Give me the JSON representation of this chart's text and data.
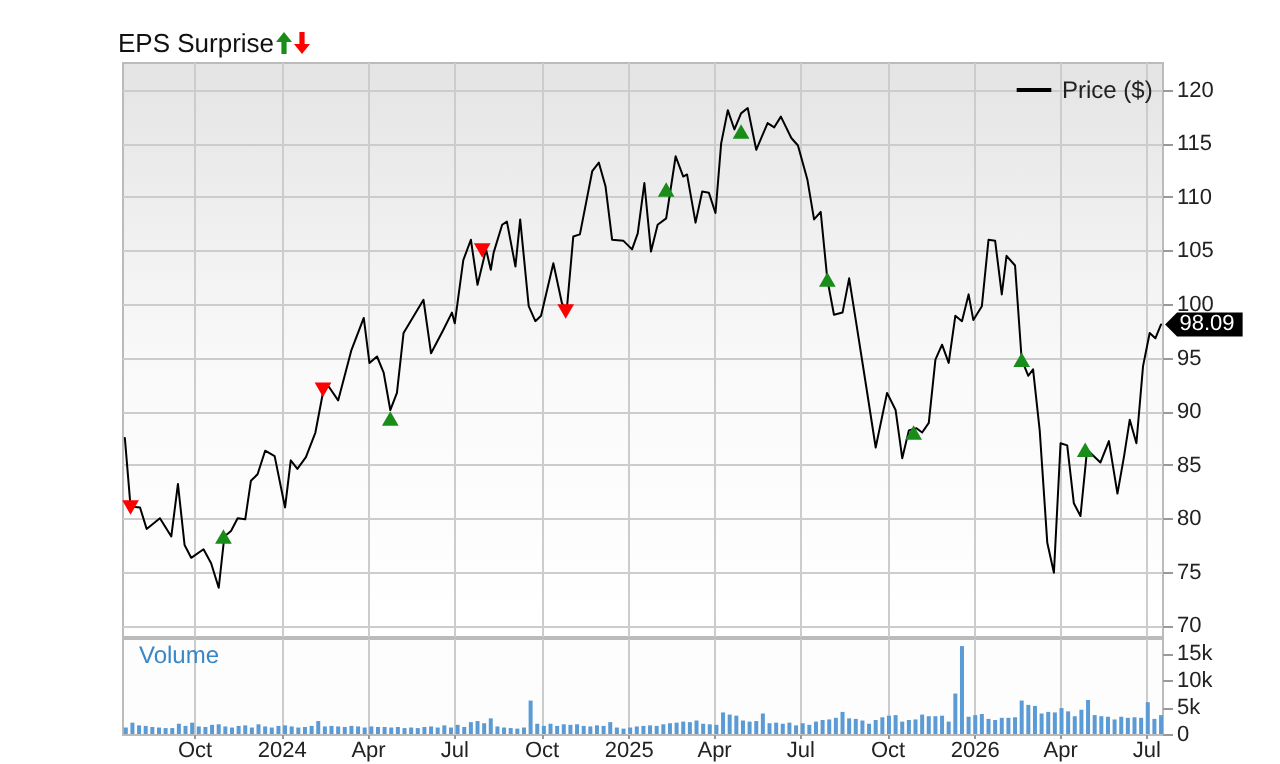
{
  "chart_data": [
    {
      "type": "line",
      "title": "EPS Surprise",
      "xlim": [
        "2023-07-17",
        "2026-07-18"
      ],
      "xticks": [
        {
          "value": "2023-10-01",
          "label": null
        },
        {
          "value": "2024-01-01",
          "label": null
        },
        {
          "value": "2024-04-01",
          "label": null
        },
        {
          "value": "2024-07-01",
          "label": null
        },
        {
          "value": "2024-10-01",
          "label": null
        },
        {
          "value": "2025-01-01",
          "label": null
        },
        {
          "value": "2025-04-01",
          "label": null
        },
        {
          "value": "2025-07-01",
          "label": null
        },
        {
          "value": "2025-10-01",
          "label": null
        },
        {
          "value": "2026-01-01",
          "label": null
        },
        {
          "value": "2026-04-01",
          "label": null
        },
        {
          "value": "2026-07-01",
          "label": null
        }
      ],
      "ylim": [
        69,
        122.6
      ],
      "yticks": [
        70,
        75,
        80,
        85,
        90,
        95,
        100,
        105,
        110,
        115,
        120
      ],
      "tick_labels": "y",
      "grid": true,
      "legend": "top right",
      "series": [
        {
          "name": "Price ($)",
          "color": "#000000",
          "x": [
            "2023-07-20",
            "2023-07-26",
            "2023-08-05",
            "2023-08-12",
            "2023-08-26",
            "2023-09-07",
            "2023-09-14",
            "2023-09-21",
            "2023-09-28",
            "2023-10-11",
            "2023-10-19",
            "2023-10-27",
            "2023-11-02",
            "2023-11-09",
            "2023-11-16",
            "2023-11-24",
            "2023-11-30",
            "2023-12-07",
            "2023-12-15",
            "2023-12-25",
            "2024-01-05",
            "2024-01-11",
            "2024-01-18",
            "2024-01-27",
            "2024-02-06",
            "2024-02-15",
            "2024-02-20",
            "2024-03-01",
            "2024-03-15",
            "2024-03-28",
            "2024-04-03",
            "2024-04-11",
            "2024-04-18",
            "2024-04-25",
            "2024-05-02",
            "2024-05-09",
            "2024-05-30",
            "2024-06-07",
            "2024-06-20",
            "2024-06-29",
            "2024-07-02",
            "2024-07-11",
            "2024-07-19",
            "2024-07-26",
            "2024-08-04",
            "2024-08-09",
            "2024-08-12",
            "2024-08-21",
            "2024-08-26",
            "2024-09-04",
            "2024-09-09",
            "2024-09-18",
            "2024-09-25",
            "2024-10-01",
            "2024-10-14",
            "2024-10-23",
            "2024-10-28",
            "2024-11-04",
            "2024-11-11",
            "2024-11-24",
            "2024-12-01",
            "2024-12-08",
            "2024-12-15",
            "2024-12-27",
            "2025-01-05",
            "2025-01-11",
            "2025-01-18",
            "2025-01-25",
            "2025-02-01",
            "2025-02-10",
            "2025-02-20",
            "2025-02-28",
            "2025-03-04",
            "2025-03-13",
            "2025-03-20",
            "2025-03-27",
            "2025-04-03",
            "2025-04-09",
            "2025-04-16",
            "2025-04-23",
            "2025-04-30",
            "2025-05-07",
            "2025-05-16",
            "2025-05-28",
            "2025-06-04",
            "2025-06-11",
            "2025-06-22",
            "2025-06-29",
            "2025-07-09",
            "2025-07-16",
            "2025-07-23",
            "2025-07-30",
            "2025-08-06",
            "2025-08-15",
            "2025-08-22",
            "2025-08-29",
            "2025-09-09",
            "2025-09-19",
            "2025-10-01",
            "2025-10-10",
            "2025-10-17",
            "2025-10-24",
            "2025-11-01",
            "2025-11-07",
            "2025-11-14",
            "2025-11-21",
            "2025-11-28",
            "2025-12-05",
            "2025-12-12",
            "2025-12-19",
            "2025-12-26",
            "2025-12-31",
            "2026-01-09",
            "2026-01-16",
            "2026-01-23",
            "2026-01-30",
            "2026-02-04",
            "2026-02-13",
            "2026-02-20",
            "2026-02-27",
            "2026-03-04",
            "2026-03-11",
            "2026-03-19",
            "2026-03-26",
            "2026-04-02",
            "2026-04-09",
            "2026-04-16",
            "2026-04-23",
            "2026-04-30",
            "2026-05-14",
            "2026-05-23",
            "2026-06-01",
            "2026-06-08",
            "2026-06-14",
            "2026-06-21",
            "2026-06-28",
            "2026-07-05",
            "2026-07-11",
            "2026-07-17"
          ],
          "values": [
            87.5,
            81.1,
            81.0,
            79.0,
            80.0,
            78.3,
            83.2,
            77.5,
            76.3,
            77.1,
            75.8,
            73.5,
            78.3,
            78.8,
            80.0,
            79.9,
            83.5,
            84.1,
            86.3,
            85.8,
            81.0,
            85.4,
            84.6,
            85.7,
            88.0,
            92.2,
            92.3,
            91.0,
            95.7,
            98.7,
            94.5,
            95.1,
            93.6,
            90.1,
            91.7,
            97.3,
            100.4,
            95.4,
            97.6,
            99.2,
            98.2,
            104.1,
            106.0,
            101.8,
            105.1,
            103.2,
            104.8,
            107.4,
            107.7,
            103.5,
            107.9,
            99.8,
            98.4,
            98.9,
            103.8,
            100.1,
            99.3,
            106.3,
            106.5,
            112.4,
            113.2,
            111.0,
            106.0,
            105.9,
            105.1,
            106.6,
            111.3,
            104.9,
            107.4,
            108.0,
            113.8,
            111.9,
            112.1,
            107.6,
            110.5,
            110.4,
            108.5,
            115.0,
            118.1,
            116.3,
            117.8,
            118.3,
            114.4,
            116.9,
            116.5,
            117.5,
            115.5,
            114.8,
            111.6,
            107.9,
            108.6,
            102.3,
            99.0,
            99.2,
            102.4,
            98.5,
            92.3,
            86.6,
            91.7,
            90.1,
            85.6,
            88.2,
            88.4,
            88.0,
            88.9,
            94.8,
            96.2,
            94.5,
            98.9,
            98.4,
            100.9,
            98.5,
            99.8,
            106.0,
            105.9,
            100.9,
            104.5,
            103.6,
            94.8,
            93.3,
            93.9,
            88.2,
            77.7,
            74.9,
            87.0,
            86.8,
            81.4,
            80.2,
            86.4,
            85.2,
            87.2,
            82.3,
            85.8,
            89.2,
            87.0,
            94.2,
            97.3,
            96.8,
            98.09
          ]
        },
        {
          "type": "scatter",
          "color": "#1a8c1a",
          "marker": "triangle",
          "x": [
            "2023-11-01",
            "2024-04-25",
            "2025-02-10",
            "2025-04-30",
            "2025-07-30",
            "2025-10-29",
            "2026-02-20",
            "2026-04-28"
          ],
          "values": [
            78.3,
            89.3,
            110.7,
            116.1,
            102.3,
            88.0,
            94.8,
            86.4
          ]
        },
        {
          "type": "scatter",
          "color": "#ff0000",
          "marker": "triangle",
          "x": [
            "2023-07-26",
            "2024-02-14",
            "2024-07-31",
            "2024-10-27"
          ],
          "values": [
            81.0,
            92.0,
            105.0,
            99.3
          ]
        }
      ],
      "annotations": [
        {
          "text": "98.09",
          "x": "2026-07-17",
          "y": 98.09
        }
      ]
    },
    {
      "type": "bar",
      "ylabel": "Volume",
      "xlim": [
        "2023-07-17",
        "2026-07-18"
      ],
      "xticks": [
        {
          "value": "2023-10-01",
          "label": "Oct"
        },
        {
          "value": "2024-01-01",
          "label": "2024"
        },
        {
          "value": "2024-04-01",
          "label": "Apr"
        },
        {
          "value": "2024-07-01",
          "label": "Jul"
        },
        {
          "value": "2024-10-01",
          "label": "Oct"
        },
        {
          "value": "2025-01-01",
          "label": "2025"
        },
        {
          "value": "2025-04-01",
          "label": "Apr"
        },
        {
          "value": "2025-07-01",
          "label": "Jul"
        },
        {
          "value": "2025-10-01",
          "label": "Oct"
        },
        {
          "value": "2026-01-01",
          "label": "2026"
        },
        {
          "value": "2026-04-01",
          "label": "Apr"
        },
        {
          "value": "2026-07-01",
          "label": "Jul"
        }
      ],
      "ylim": [
        0,
        17800
      ],
      "yticks": [
        0,
        {
          "value": 5000,
          "label": "5k"
        },
        {
          "value": 10000,
          "label": "10k"
        },
        {
          "value": 15000,
          "label": "15k"
        }
      ],
      "grid": "x",
      "x": [
        "2023-07-21",
        "2023-07-28",
        "2023-08-04",
        "2023-08-11",
        "2023-08-18",
        "2023-08-25",
        "2023-09-01",
        "2023-09-08",
        "2023-09-15",
        "2023-09-22",
        "2023-09-29",
        "2023-10-06",
        "2023-10-13",
        "2023-10-20",
        "2023-10-27",
        "2023-11-03",
        "2023-11-10",
        "2023-11-17",
        "2023-11-24",
        "2023-12-01",
        "2023-12-08",
        "2023-12-15",
        "2023-12-22",
        "2023-12-29",
        "2024-01-05",
        "2024-01-12",
        "2024-01-19",
        "2024-01-26",
        "2024-02-02",
        "2024-02-09",
        "2024-02-16",
        "2024-02-23",
        "2024-03-01",
        "2024-03-08",
        "2024-03-15",
        "2024-03-22",
        "2024-03-29",
        "2024-04-05",
        "2024-04-12",
        "2024-04-19",
        "2024-04-26",
        "2024-05-03",
        "2024-05-10",
        "2024-05-17",
        "2024-05-24",
        "2024-05-31",
        "2024-06-07",
        "2024-06-14",
        "2024-06-21",
        "2024-06-28",
        "2024-07-05",
        "2024-07-12",
        "2024-07-19",
        "2024-07-26",
        "2024-08-02",
        "2024-08-09",
        "2024-08-16",
        "2024-08-23",
        "2024-08-30",
        "2024-09-06",
        "2024-09-13",
        "2024-09-20",
        "2024-09-27",
        "2024-10-04",
        "2024-10-11",
        "2024-10-18",
        "2024-10-25",
        "2024-11-01",
        "2024-11-08",
        "2024-11-15",
        "2024-11-22",
        "2024-11-29",
        "2024-12-06",
        "2024-12-13",
        "2024-12-20",
        "2024-12-27",
        "2025-01-03",
        "2025-01-10",
        "2025-01-17",
        "2025-01-24",
        "2025-01-31",
        "2025-02-07",
        "2025-02-14",
        "2025-02-21",
        "2025-02-28",
        "2025-03-07",
        "2025-03-14",
        "2025-03-21",
        "2025-03-28",
        "2025-04-04",
        "2025-04-11",
        "2025-04-18",
        "2025-04-25",
        "2025-05-02",
        "2025-05-09",
        "2025-05-16",
        "2025-05-23",
        "2025-05-30",
        "2025-06-06",
        "2025-06-13",
        "2025-06-20",
        "2025-06-27",
        "2025-07-04",
        "2025-07-11",
        "2025-07-18",
        "2025-07-25",
        "2025-08-01",
        "2025-08-08",
        "2025-08-15",
        "2025-08-22",
        "2025-08-29",
        "2025-09-05",
        "2025-09-12",
        "2025-09-19",
        "2025-09-26",
        "2025-10-03",
        "2025-10-10",
        "2025-10-17",
        "2025-10-24",
        "2025-10-31",
        "2025-11-07",
        "2025-11-14",
        "2025-11-21",
        "2025-11-28",
        "2025-12-05",
        "2025-12-12",
        "2025-12-19",
        "2025-12-26",
        "2026-01-02",
        "2026-01-09",
        "2026-01-16",
        "2026-01-23",
        "2026-01-30",
        "2026-02-06",
        "2026-02-13",
        "2026-02-20",
        "2026-02-27",
        "2026-03-06",
        "2026-03-13",
        "2026-03-20",
        "2026-03-27",
        "2026-04-03",
        "2026-04-10",
        "2026-04-17",
        "2026-04-24",
        "2026-05-01",
        "2026-05-08",
        "2026-05-15",
        "2026-05-22",
        "2026-05-29",
        "2026-06-05",
        "2026-06-12",
        "2026-06-19",
        "2026-06-26",
        "2026-07-03",
        "2026-07-10",
        "2026-07-17"
      ],
      "series": [
        {
          "color": "#5b9bd5",
          "values": [
            1200,
            2100,
            1600,
            1500,
            1300,
            1200,
            1100,
            1100,
            1900,
            1500,
            2100,
            1400,
            1300,
            1700,
            1800,
            1400,
            1200,
            1500,
            1600,
            1200,
            1800,
            1400,
            1200,
            1500,
            1600,
            1400,
            1200,
            1300,
            1500,
            2400,
            1400,
            1500,
            1400,
            1300,
            1500,
            1400,
            1200,
            1400,
            1300,
            1300,
            1200,
            1300,
            1100,
            1200,
            1100,
            1300,
            1400,
            1200,
            1600,
            1200,
            1700,
            1300,
            2200,
            2400,
            2000,
            2900,
            1400,
            1200,
            1100,
            1000,
            1200,
            6200,
            1900,
            1500,
            1900,
            1500,
            1800,
            1700,
            1800,
            1500,
            1400,
            1600,
            1500,
            2200,
            1200,
            1000,
            1200,
            1400,
            1500,
            1600,
            1500,
            1800,
            2000,
            2100,
            2300,
            2200,
            2500,
            1900,
            1800,
            1700,
            4000,
            3600,
            3400,
            2500,
            2300,
            2400,
            3800,
            2000,
            2100,
            1900,
            2100,
            1600,
            2000,
            1700,
            2300,
            2600,
            2700,
            3000,
            4100,
            2900,
            2800,
            2500,
            1900,
            2600,
            3100,
            3400,
            3500,
            2300,
            2600,
            2700,
            3600,
            3300,
            3300,
            3400,
            2300,
            7500,
            16300,
            3200,
            3500,
            3700,
            2800,
            2600,
            3000,
            3000,
            3100,
            6200,
            5400,
            5200,
            3800,
            4100,
            4000,
            4800,
            4200,
            3300,
            4500,
            6300,
            3500,
            3300,
            3200,
            2700,
            3200,
            3000,
            3100,
            3000,
            5900,
            2800,
            3500
          ]
        }
      ]
    }
  ]
}
